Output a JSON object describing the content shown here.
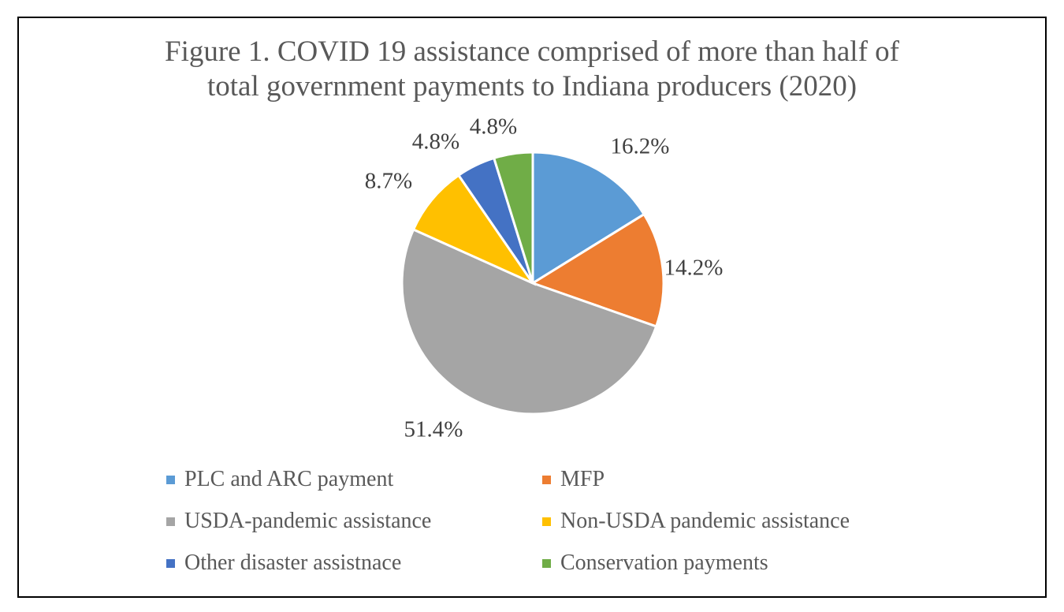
{
  "chart_data": {
    "type": "pie",
    "title_lines": [
      "Figure 1. COVID 19 assistance comprised of more than half of",
      "total government payments to Indiana producers (2020)"
    ],
    "categories": [
      "PLC and ARC payment",
      "MFP",
      "USDA-pandemic assistance",
      "Non-USDA pandemic assistance",
      "Other disaster assistnace",
      "Conservation payments"
    ],
    "values": [
      16.2,
      14.2,
      51.4,
      8.7,
      4.8,
      4.8
    ],
    "data_labels": [
      "16.2%",
      "14.2%",
      "51.4%",
      "8.7%",
      "4.8%",
      "4.8%"
    ],
    "colors": [
      "#5B9BD5",
      "#ED7D31",
      "#A5A5A5",
      "#FFC000",
      "#4472C4",
      "#70AD47"
    ],
    "legend_placement": "bottom"
  }
}
